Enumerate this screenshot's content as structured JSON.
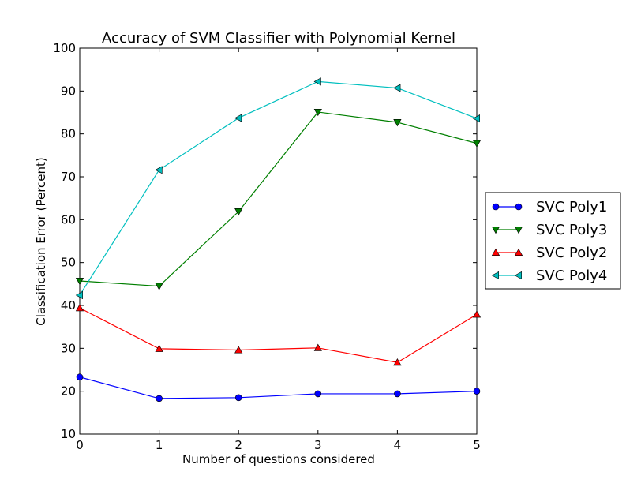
{
  "chart_data": {
    "type": "line",
    "title": "Accuracy of SVM Classifier with Polynomial Kernel",
    "xlabel": "Number of questions considered",
    "ylabel": "Classification Error (Percent)",
    "x": [
      0,
      1,
      2,
      3,
      4,
      5
    ],
    "xlim": [
      0,
      5
    ],
    "ylim": [
      10,
      100
    ],
    "xticks": [
      0,
      1,
      2,
      3,
      4,
      5
    ],
    "yticks": [
      10,
      20,
      30,
      40,
      50,
      60,
      70,
      80,
      90,
      100
    ],
    "grid": false,
    "legend_position": "outside-right",
    "series": [
      {
        "name": "SVC Poly1",
        "color": "#0000ff",
        "marker": "circle",
        "values": [
          23.3,
          18.3,
          18.5,
          19.4,
          19.4,
          20.0
        ]
      },
      {
        "name": "SVC Poly3",
        "color": "#007f00",
        "marker": "triangle-down",
        "values": [
          45.7,
          44.5,
          61.9,
          85.1,
          82.7,
          77.8
        ]
      },
      {
        "name": "SVC Poly2",
        "color": "#ff0000",
        "marker": "triangle-up",
        "values": [
          39.4,
          29.9,
          29.6,
          30.1,
          26.7,
          37.9
        ]
      },
      {
        "name": "SVC Poly4",
        "color": "#00bfbf",
        "marker": "triangle-left",
        "values": [
          42.4,
          71.6,
          83.7,
          92.2,
          90.7,
          83.6
        ]
      }
    ]
  }
}
